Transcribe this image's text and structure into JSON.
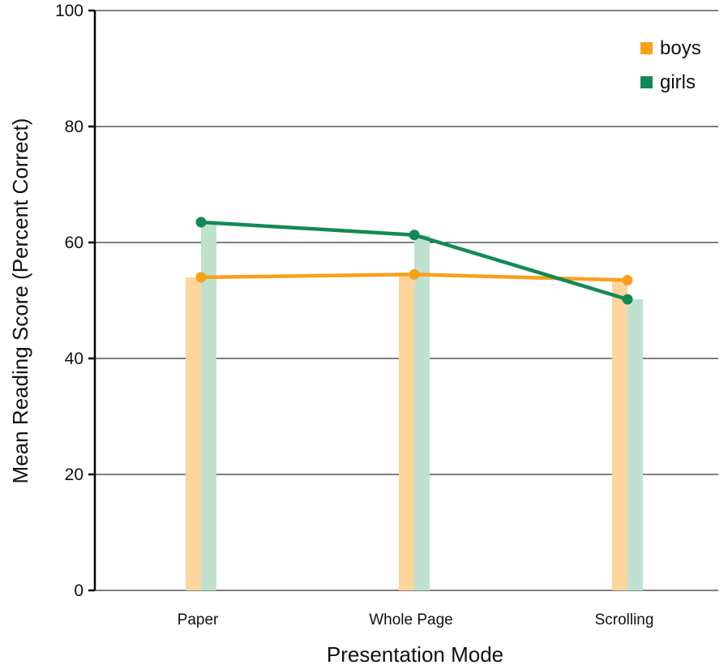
{
  "chart_data": {
    "type": "line",
    "title": "",
    "xlabel": "Presentation Mode",
    "ylabel": "Mean Reading Score (Percent Correct)",
    "ylim": [
      0,
      100
    ],
    "yticks": [
      0,
      20,
      40,
      60,
      80,
      100
    ],
    "ytick_labels": [
      "0",
      "20",
      "40",
      "60",
      "80",
      "100"
    ],
    "categories": [
      "Paper",
      "Whole Page",
      "Scrolling"
    ],
    "grid": "horizontal",
    "legend_position": "top-right",
    "bars_behind_lines": true,
    "series": [
      {
        "name": "boys",
        "values": [
          54.0,
          54.5,
          53.5
        ],
        "color": "#f7a11a",
        "bar_color": "#fdd59c"
      },
      {
        "name": "girls",
        "values": [
          63.5,
          61.3,
          50.2
        ],
        "color": "#138a55",
        "bar_color": "#bfe2d0"
      }
    ]
  }
}
